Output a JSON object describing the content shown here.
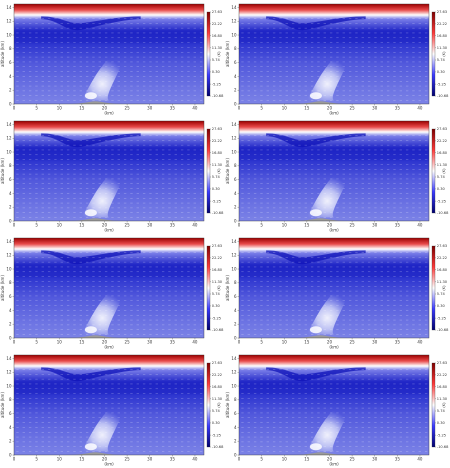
{
  "chart_data": {
    "type": "heatmap",
    "layout": "4 rows x 2 columns of identical panels",
    "panel_count": 8,
    "xlabel": "(km)",
    "ylabel": "altitude (km)",
    "colorbar_label": "(K)",
    "x_ticks": [
      "0",
      "5",
      "10",
      "15",
      "20",
      "25",
      "30",
      "35",
      "40"
    ],
    "x_range": [
      0,
      42
    ],
    "y_ticks": [
      "0",
      "2",
      "4",
      "6",
      "8",
      "10",
      "12",
      "14"
    ],
    "y_range": [
      0,
      14.5
    ],
    "colorbar_ticks": [
      "27.63",
      "22.22",
      "16.80",
      "11.30",
      "5.74",
      "0.30",
      "-5.25",
      "-10.68"
    ],
    "colorbar_range": [
      -10.68,
      27.63
    ],
    "colormap": "diverging blue-white-red (seismic)",
    "colors": {
      "low": "#0000aa",
      "mid": "#ffffff",
      "high": "#b20000",
      "terrain": "#9a9a9a"
    },
    "features": {
      "terrain_peak_x_km": 18,
      "terrain_peak_height_km": 0.4,
      "warm_layer_base_km": 13,
      "tropopause_dip_center_x_km": 14,
      "tropopause_dip_depth_km": 1.3,
      "plume_base_x_km": 17,
      "plume_top_x_km": 21,
      "plume_top_altitude_km": 6.5
    }
  }
}
